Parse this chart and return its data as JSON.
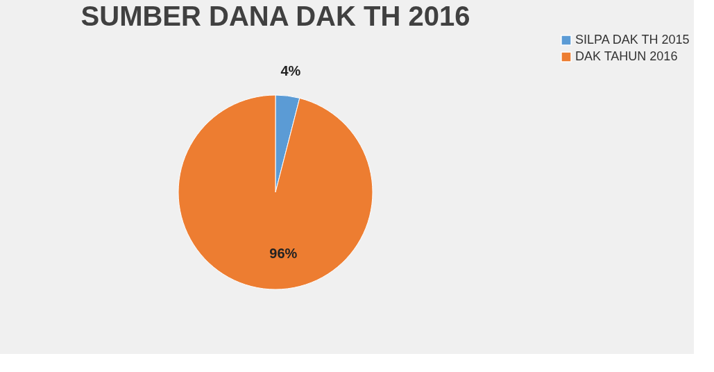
{
  "chart_data": {
    "type": "pie",
    "title": "SUMBER DANA DAK TH 2016",
    "categories": [
      "SILPA DAK TH 2015",
      "DAK TAHUN 2016"
    ],
    "values": [
      4,
      96
    ],
    "colors": [
      "#5b9bd5",
      "#ed7d31"
    ],
    "value_labels": [
      "4%",
      "96%"
    ],
    "legend": "right"
  }
}
